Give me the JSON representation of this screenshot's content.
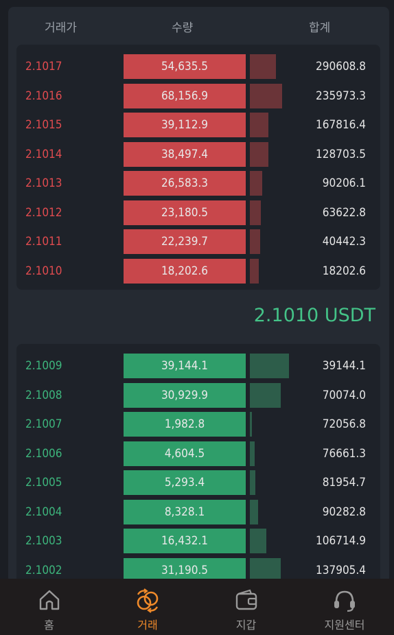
{
  "header": {
    "price": "거래가",
    "qty": "수량",
    "total": "합계"
  },
  "asks": [
    {
      "price": "2.1017",
      "qty": "54,635.5",
      "depth": 0.38,
      "total": "290608.8"
    },
    {
      "price": "2.1016",
      "qty": "68,156.9",
      "depth": 0.47,
      "total": "235973.3"
    },
    {
      "price": "2.1015",
      "qty": "39,112.9",
      "depth": 0.27,
      "total": "167816.4"
    },
    {
      "price": "2.1014",
      "qty": "38,497.4",
      "depth": 0.27,
      "total": "128703.5"
    },
    {
      "price": "2.1013",
      "qty": "26,583.3",
      "depth": 0.18,
      "total": "90206.1"
    },
    {
      "price": "2.1012",
      "qty": "23,180.5",
      "depth": 0.16,
      "total": "63622.8"
    },
    {
      "price": "2.1011",
      "qty": "22,239.7",
      "depth": 0.15,
      "total": "40442.3"
    },
    {
      "price": "2.1010",
      "qty": "18,202.6",
      "depth": 0.13,
      "total": "18202.6"
    }
  ],
  "last_price": "2.1010 USDT",
  "bids": [
    {
      "price": "2.1009",
      "qty": "39,144.1",
      "depth": 0.57,
      "total": "39144.1"
    },
    {
      "price": "2.1008",
      "qty": "30,929.9",
      "depth": 0.45,
      "total": "70074.0"
    },
    {
      "price": "2.1007",
      "qty": "1,982.8",
      "depth": 0.03,
      "total": "72056.8"
    },
    {
      "price": "2.1006",
      "qty": "4,604.5",
      "depth": 0.07,
      "total": "76661.3"
    },
    {
      "price": "2.1005",
      "qty": "5,293.4",
      "depth": 0.08,
      "total": "81954.7"
    },
    {
      "price": "2.1004",
      "qty": "8,328.1",
      "depth": 0.12,
      "total": "90282.8"
    },
    {
      "price": "2.1003",
      "qty": "16,432.1",
      "depth": 0.24,
      "total": "106714.9"
    },
    {
      "price": "2.1002",
      "qty": "31,190.5",
      "depth": 0.45,
      "total": "137905.4"
    }
  ],
  "tabs": [
    {
      "label": "홈",
      "icon": "home-icon",
      "active": false
    },
    {
      "label": "거래",
      "icon": "exchange-icon",
      "active": true
    },
    {
      "label": "지갑",
      "icon": "wallet-icon",
      "active": false
    },
    {
      "label": "지원센터",
      "icon": "headset-icon",
      "active": false
    }
  ],
  "colors": {
    "ask": "#e04b4f",
    "bid": "#3db57c",
    "last_price": "#44c388",
    "active_tab": "#f08a2a"
  }
}
